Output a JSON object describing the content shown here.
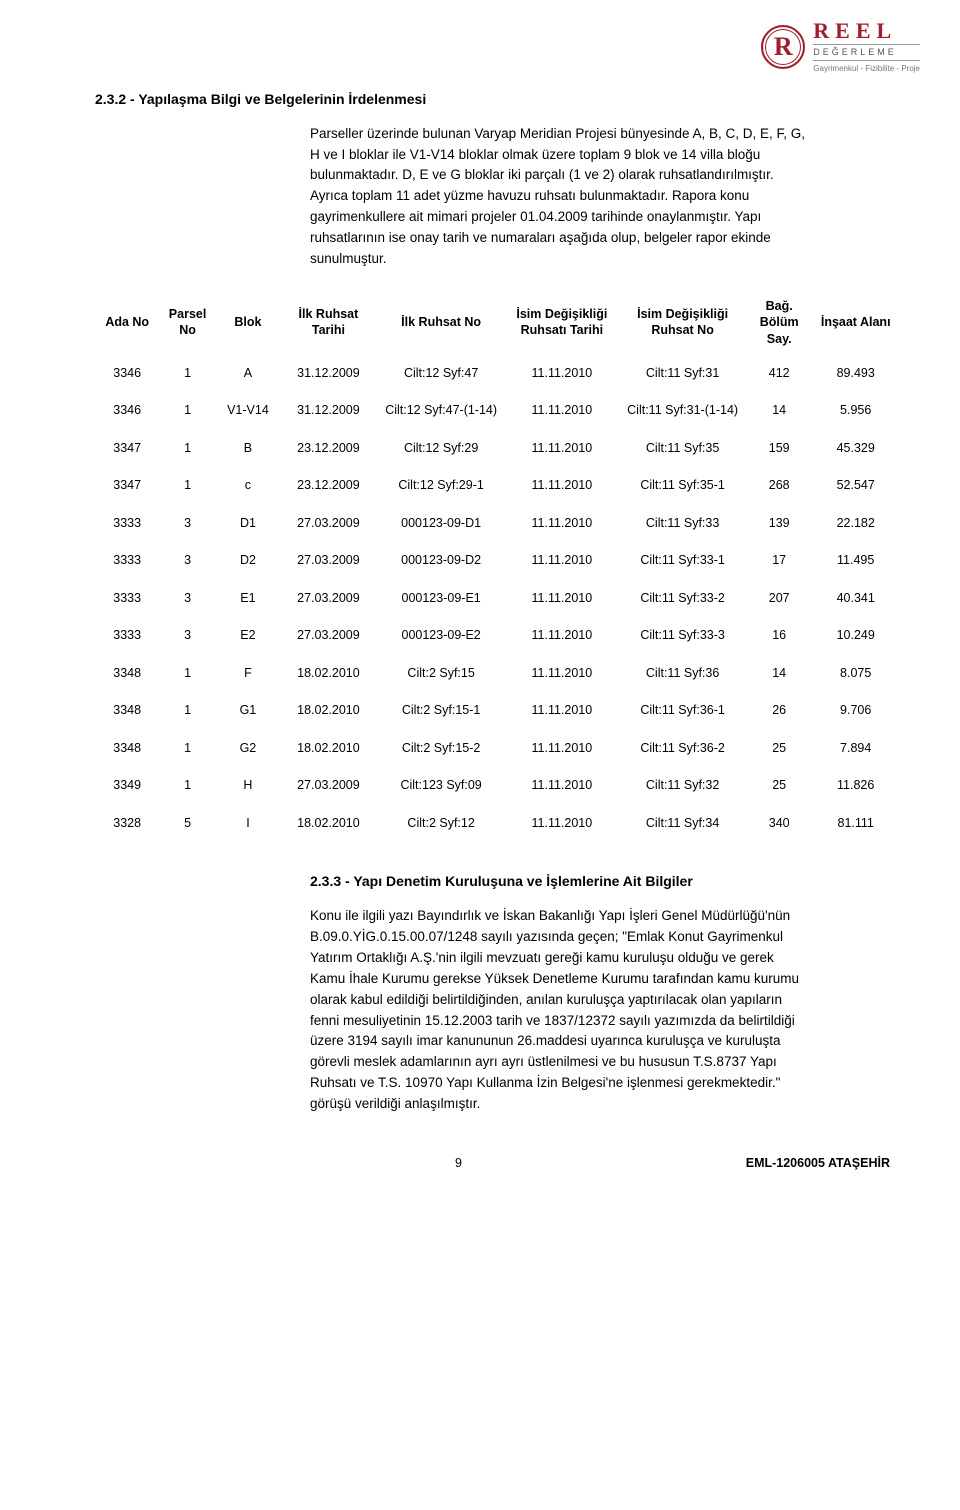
{
  "logo": {
    "letter": "R",
    "main": "REEL",
    "sub1": "DEĞERLEME",
    "sub2": "Gayrimenkul - Fizibilite - Proje"
  },
  "section1": {
    "heading": "2.3.2  -  Yapılaşma Bilgi ve Belgelerinin İrdelenmesi",
    "body": "Parseller üzerinde bulunan Varyap Meridian Projesi bünyesinde A, B, C, D, E, F, G, H ve I bloklar ile V1-V14 bloklar olmak üzere toplam 9 blok ve 14 villa bloğu bulunmaktadır. D, E ve G bloklar iki parçalı (1 ve 2) olarak ruhsatlandırılmıştır. Ayrıca toplam 11 adet yüzme havuzu ruhsatı bulunmaktadır. Rapora konu gayrimenkullere ait mimari projeler 01.04.2009 tarihinde onaylanmıştır. Yapı ruhsatlarının ise onay tarih ve numaraları aşağıda olup, belgeler rapor ekinde sunulmuştur."
  },
  "table": {
    "columns": [
      "Ada No",
      "Parsel No",
      "Blok",
      "İlk Ruhsat Tarihi",
      "İlk Ruhsat No",
      "İsim Değişikliği Ruhsatı Tarihi",
      "İsim Değişikliği Ruhsat No",
      "Bağ. Bölüm Say.",
      "İnşaat Alanı"
    ],
    "col_widths": [
      "8%",
      "7%",
      "8%",
      "12%",
      "16%",
      "14%",
      "16%",
      "8%",
      "11%"
    ],
    "rows": [
      [
        "3346",
        "1",
        "A",
        "31.12.2009",
        "Cilt:12 Syf:47",
        "11.11.2010",
        "Cilt:11 Syf:31",
        "412",
        "89.493"
      ],
      [
        "3346",
        "1",
        "V1-V14",
        "31.12.2009",
        "Cilt:12 Syf:47-(1-14)",
        "11.11.2010",
        "Cilt:11 Syf:31-(1-14)",
        "14",
        "5.956"
      ],
      [
        "3347",
        "1",
        "B",
        "23.12.2009",
        "Cilt:12 Syf:29",
        "11.11.2010",
        "Cilt:11 Syf:35",
        "159",
        "45.329"
      ],
      [
        "3347",
        "1",
        "c",
        "23.12.2009",
        "Cilt:12 Syf:29-1",
        "11.11.2010",
        "Cilt:11 Syf:35-1",
        "268",
        "52.547"
      ],
      [
        "3333",
        "3",
        "D1",
        "27.03.2009",
        "000123-09-D1",
        "11.11.2010",
        "Cilt:11 Syf:33",
        "139",
        "22.182"
      ],
      [
        "3333",
        "3",
        "D2",
        "27.03.2009",
        "000123-09-D2",
        "11.11.2010",
        "Cilt:11 Syf:33-1",
        "17",
        "11.495"
      ],
      [
        "3333",
        "3",
        "E1",
        "27.03.2009",
        "000123-09-E1",
        "11.11.2010",
        "Cilt:11 Syf:33-2",
        "207",
        "40.341"
      ],
      [
        "3333",
        "3",
        "E2",
        "27.03.2009",
        "000123-09-E2",
        "11.11.2010",
        "Cilt:11 Syf:33-3",
        "16",
        "10.249"
      ],
      [
        "3348",
        "1",
        "F",
        "18.02.2010",
        "Cilt:2 Syf:15",
        "11.11.2010",
        "Cilt:11 Syf:36",
        "14",
        "8.075"
      ],
      [
        "3348",
        "1",
        "G1",
        "18.02.2010",
        "Cilt:2 Syf:15-1",
        "11.11.2010",
        "Cilt:11 Syf:36-1",
        "26",
        "9.706"
      ],
      [
        "3348",
        "1",
        "G2",
        "18.02.2010",
        "Cilt:2 Syf:15-2",
        "11.11.2010",
        "Cilt:11 Syf:36-2",
        "25",
        "7.894"
      ],
      [
        "3349",
        "1",
        "H",
        "27.03.2009",
        "Cilt:123 Syf:09",
        "11.11.2010",
        "Cilt:11 Syf:32",
        "25",
        "11.826"
      ],
      [
        "3328",
        "5",
        "I",
        "18.02.2010",
        "Cilt:2 Syf:12",
        "11.11.2010",
        "Cilt:11 Syf:34",
        "340",
        "81.111"
      ]
    ]
  },
  "section2": {
    "heading": "2.3.3  -  Yapı Denetim Kuruluşuna ve İşlemlerine Ait Bilgiler",
    "body": "Konu ile ilgili yazı Bayındırlık ve İskan Bakanlığı Yapı İşleri Genel Müdürlüğü'nün B.09.0.YİG.0.15.00.07/1248 sayılı yazısında geçen; \"Emlak Konut Gayrimenkul Yatırım Ortaklığı A.Ş.'nin ilgili mevzuatı gereği kamu kuruluşu olduğu ve gerek Kamu İhale Kurumu gerekse Yüksek Denetleme Kurumu tarafından kamu kurumu olarak kabul edildiği belirtildiğinden, anılan kuruluşça yaptırılacak olan yapıların fenni mesuliyetinin 15.12.2003 tarih ve 1837/12372 sayılı yazımızda da belirtildiği üzere 3194 sayılı imar kanununun 26.maddesi uyarınca kuruluşça ve kuruluşta görevli meslek adamlarının ayrı ayrı üstlenilmesi ve bu hususun T.S.8737 Yapı Ruhsatı ve T.S. 10970 Yapı Kullanma İzin Belgesi'ne işlenmesi gerekmektedir.\" görüşü verildiği anlaşılmıştır."
  },
  "footer": {
    "page": "9",
    "doc": "EML-1206005 ATAŞEHİR"
  }
}
